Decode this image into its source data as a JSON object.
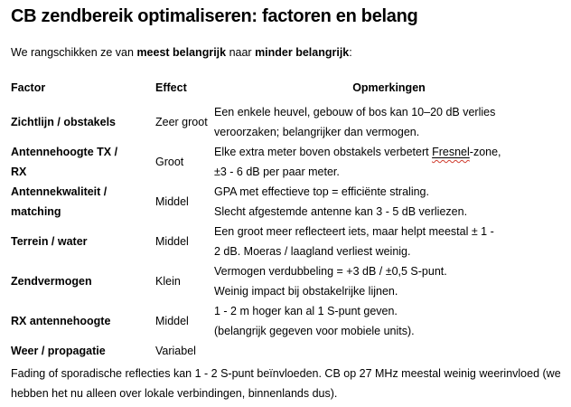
{
  "document": {
    "title": "CB zendbereik optimaliseren: factoren en belang",
    "intro": {
      "segments": [
        {
          "text": "We rangschikken ze van ",
          "bold": false
        },
        {
          "text": "meest belangrijk",
          "bold": true
        },
        {
          "text": " naar ",
          "bold": false
        },
        {
          "text": "minder belangrijk",
          "bold": true
        },
        {
          "text": ":",
          "bold": false
        }
      ]
    },
    "table": {
      "headers": {
        "factor": "Factor",
        "effect": "Effect",
        "remarks": "Opmerkingen"
      },
      "rows": [
        {
          "factor": "Zichtlijn / obstakels",
          "effect": "Zeer groot",
          "remarks": "Een enkele heuvel, gebouw of bos kan 10–20 dB verlies\nveroorzaken; belangrijker dan vermogen."
        },
        {
          "factor": "Antennehoogte TX /\nRX",
          "effect": "Groot",
          "remarks": "Elke extra meter boven obstakels verbetert Fresnel-zone,\n±3 - 6 dB per paar meter.",
          "misspelled_word": "Fresnel"
        },
        {
          "factor": "Antennekwaliteit /\nmatching",
          "effect": "Middel",
          "remarks": "GPA met effectieve top = efficiënte straling.\nSlecht afgestemde antenne kan 3 - 5 dB verliezen."
        },
        {
          "factor": "Terrein / water",
          "effect": "Middel",
          "remarks": "Een groot meer reflecteert iets, maar helpt meestal ± 1 -\n2 dB. Moeras / laagland verliest weinig."
        },
        {
          "factor": "Zendvermogen",
          "effect": "Klein",
          "remarks": "Vermogen verdubbeling = +3 dB / ±0,5 S-punt.\nWeinig impact bij obstakelrijke lijnen."
        },
        {
          "factor": "RX antennehoogte",
          "effect": "Middel",
          "remarks": "1 - 2 m hoger kan al 1 S-punt geven.\n(belangrijk gegeven voor mobiele units)."
        },
        {
          "factor": "Weer / propagatie",
          "effect": "Variabel",
          "remarks": ""
        }
      ]
    },
    "footer": "Fading of sporadische reflecties kan 1 - 2 S-punt beïnvloeden. CB op 27 MHz meestal weinig weerinvloed (we hebben het nu alleen over lokale verbindingen, binnenlands dus)."
  },
  "colors": {
    "text": "#000000",
    "background": "#ffffff",
    "spellcheck_underline": "#d03c2f"
  }
}
